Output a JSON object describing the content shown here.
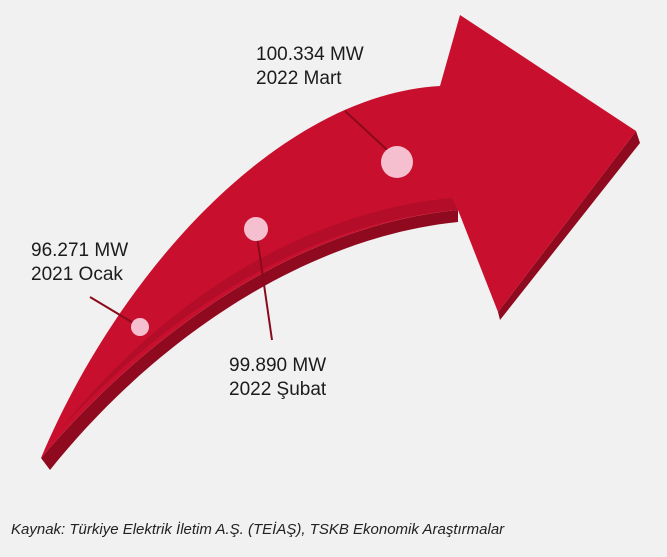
{
  "colors": {
    "background": "#f1f1f1",
    "arrow_top": "#c8102e",
    "arrow_side": "#8f0a1f",
    "marker": "#f6bfd0",
    "leader_line": "#8a0a1c"
  },
  "points": [
    {
      "value": "96.271 MW",
      "period": "2021 Ocak"
    },
    {
      "value": "99.890 MW",
      "period": "2022 Şubat"
    },
    {
      "value": "100.334 MW",
      "period": "2022 Mart"
    }
  ],
  "source": "Kaynak: Türkiye Elektrik İletim A.Ş. (TEİAŞ), TSKB Ekonomik Araştırmalar"
}
